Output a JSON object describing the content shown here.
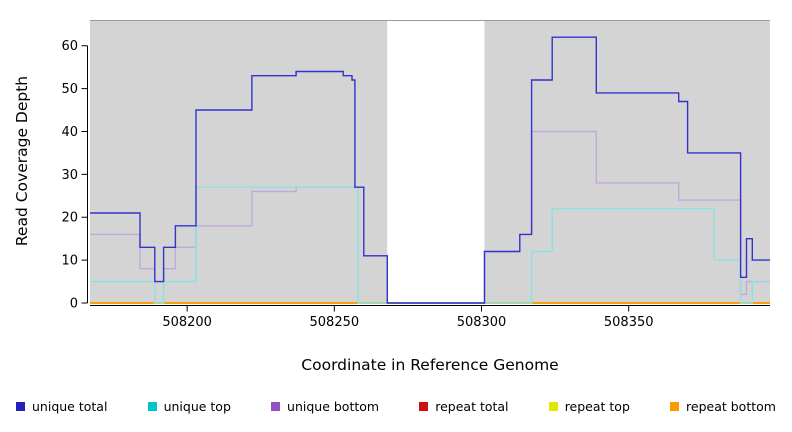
{
  "chart_data": {
    "type": "line",
    "subtype": "step",
    "title": "",
    "xlabel": "Coordinate in Reference Genome",
    "ylabel": "Read Coverage Depth",
    "xlim": [
      508167,
      508398
    ],
    "ylim": [
      0,
      66
    ],
    "xticks": [
      508200,
      508250,
      508300,
      508350
    ],
    "yticks": [
      0,
      10,
      20,
      30,
      40,
      50,
      60
    ],
    "background": "#d4d4d4",
    "mask_region": {
      "start": 508268,
      "end": 508301,
      "color": "#ffffff"
    },
    "series": [
      {
        "name": "repeat total",
        "color": "#cc1111",
        "points": [
          [
            508167,
            0
          ]
        ]
      },
      {
        "name": "repeat top",
        "color": "#e6e600",
        "points": [
          [
            508167,
            0
          ]
        ]
      },
      {
        "name": "repeat bottom",
        "color": "#ff9900",
        "points": [
          [
            508167,
            0
          ]
        ]
      },
      {
        "name": "unique bottom",
        "color": "#c3a8e0",
        "points": [
          [
            508167,
            16
          ],
          [
            508184,
            8
          ],
          [
            508189,
            5
          ],
          [
            508192,
            8
          ],
          [
            508196,
            13
          ],
          [
            508203,
            18
          ],
          [
            508222,
            26
          ],
          [
            508237,
            27
          ],
          [
            508260,
            11
          ],
          [
            508268,
            0
          ],
          [
            508301,
            12
          ],
          [
            508313,
            16
          ],
          [
            508317,
            40
          ],
          [
            508339,
            28
          ],
          [
            508367,
            24
          ],
          [
            508388,
            2
          ],
          [
            508390,
            5
          ]
        ]
      },
      {
        "name": "unique top",
        "color": "#8ae2e2",
        "points": [
          [
            508167,
            5
          ],
          [
            508189,
            0
          ],
          [
            508192,
            5
          ],
          [
            508203,
            27
          ],
          [
            508258,
            0
          ],
          [
            508301,
            0
          ],
          [
            508317,
            12
          ],
          [
            508324,
            22
          ],
          [
            508379,
            10
          ],
          [
            508388,
            0
          ],
          [
            508392,
            5
          ]
        ]
      },
      {
        "name": "unique total",
        "color": "#3333cc",
        "points": [
          [
            508167,
            21
          ],
          [
            508184,
            13
          ],
          [
            508189,
            5
          ],
          [
            508192,
            13
          ],
          [
            508196,
            18
          ],
          [
            508203,
            45
          ],
          [
            508222,
            53
          ],
          [
            508237,
            54
          ],
          [
            508253,
            53
          ],
          [
            508256,
            52
          ],
          [
            508257,
            27
          ],
          [
            508260,
            11
          ],
          [
            508268,
            0
          ],
          [
            508301,
            12
          ],
          [
            508313,
            16
          ],
          [
            508317,
            52
          ],
          [
            508324,
            62
          ],
          [
            508339,
            49
          ],
          [
            508367,
            47
          ],
          [
            508370,
            35
          ],
          [
            508388,
            6
          ],
          [
            508390,
            15
          ],
          [
            508392,
            10
          ]
        ]
      }
    ],
    "legend": [
      {
        "label": "unique total",
        "color": "#2222bb"
      },
      {
        "label": "unique top",
        "color": "#00c5cd"
      },
      {
        "label": "unique bottom",
        "color": "#9450c8"
      },
      {
        "label": "repeat total",
        "color": "#cc1111"
      },
      {
        "label": "repeat top",
        "color": "#e6e600"
      },
      {
        "label": "repeat bottom",
        "color": "#ff9900"
      }
    ]
  }
}
